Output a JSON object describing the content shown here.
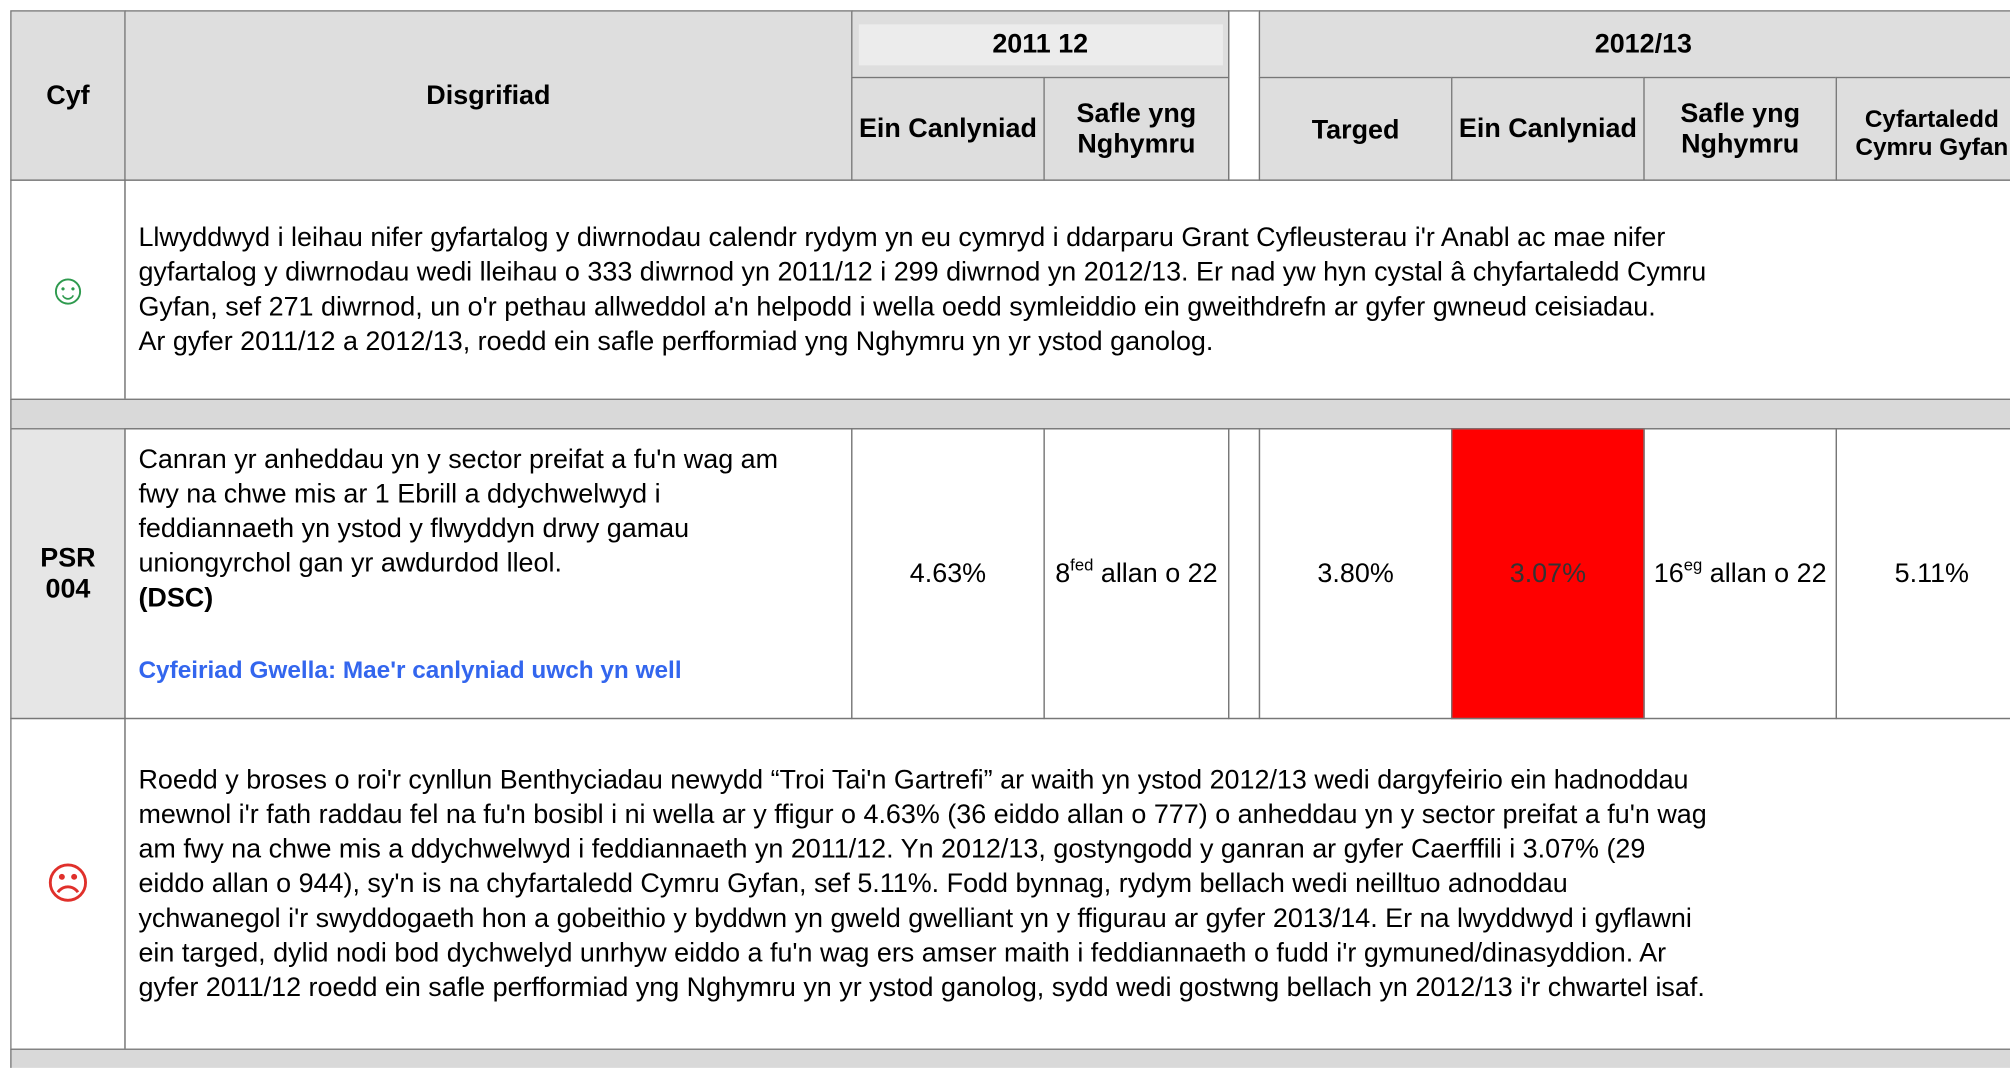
{
  "header": {
    "ref": "Cyf",
    "description": "Disgrifiad",
    "period1": "2011 12",
    "period1_cols": [
      "Ein Canlyniad",
      "Safle yng Nghymru"
    ],
    "period2": "2012/13",
    "period2_cols": [
      "Targed",
      "Ein Canlyniad",
      "Safle yng Nghymru",
      "Cyfartaledd Cymru Gyfan"
    ]
  },
  "summary1": {
    "icon": "☺",
    "lines": [
      "Llwyddwyd i leihau nifer gyfartalog y diwrnodau calendr rydym yn eu cymryd i ddarparu Grant Cyfleusterau i'r Anabl ac mae nifer",
      "gyfartalog y diwrnodau wedi lleihau o 333 diwrnod yn 2011/12 i 299 diwrnod yn 2012/13. Er nad yw hyn cystal â chyfartaledd Cymru",
      "Gyfan, sef 271 diwrnod, un o'r pethau allweddol a'n helpodd i wella oedd symleiddio ein gweithdrefn ar gyfer gwneud ceisiadau.",
      "Ar gyfer 2011/12 a 2012/13, roedd ein safle perfformiad yng Nghymru yn yr ystod ganolog."
    ]
  },
  "indicator": {
    "ref": "PSR 004",
    "description": "Canran yr anheddau yn y sector preifat a fu'n wag am fwy na chwe mis ar 1 Ebrill a ddychwelwyd i feddiannaeth yn ystod y flwyddyn drwy gamau uniongyrchol gan yr awdurdod lleol.",
    "tag": "(DSC)",
    "improvement": "Cyfeiriad Gwella: Mae'r canlyniad uwch yn well",
    "p1_result": "4.63%",
    "p1_rank": {
      "num": "8",
      "sup": "fed",
      "rest": "allan o 22"
    },
    "p2_target": "3.80%",
    "p2_result": "3.07%",
    "p2_rank": {
      "num": "16",
      "sup": "eg",
      "rest": "allan o 22"
    },
    "p2_wales": "5.11%"
  },
  "summary2": {
    "icon": "☹",
    "lines": [
      "Roedd y broses o roi'r cynllun Benthyciadau newydd “Troi Tai'n Gartrefi” ar waith yn ystod 2012/13 wedi dargyfeirio ein hadnoddau",
      "mewnol i'r fath raddau fel na fu'n bosibl i ni wella ar y ffigur o 4.63% (36 eiddo allan o 777) o anheddau yn y sector preifat a fu'n wag",
      "am fwy na chwe mis a ddychwelwyd i feddiannaeth yn 2011/12.  Yn 2012/13, gostyngodd y ganran ar gyfer Caerffili i 3.07% (29",
      "eiddo allan o 944), sy'n is na chyfartaledd Cymru Gyfan, sef 5.11%. Fodd bynnag, rydym bellach wedi neilltuo adnoddau",
      "ychwanegol i'r swyddogaeth hon a gobeithio y byddwn yn gweld gwelliant yn y ffigurau ar gyfer 2013/14.  Er na lwyddwyd i gyflawni",
      "ein targed, dylid nodi bod dychwelyd unrhyw eiddo a fu'n wag ers amser maith i feddiannaeth o fudd i'r gymuned/dinasyddion.  Ar",
      "gyfer 2011/12 roedd ein safle perfformiad yng Nghymru yn yr ystod ganolog, sydd wedi gostwng bellach yn 2012/13 i'r chwartel isaf."
    ]
  }
}
